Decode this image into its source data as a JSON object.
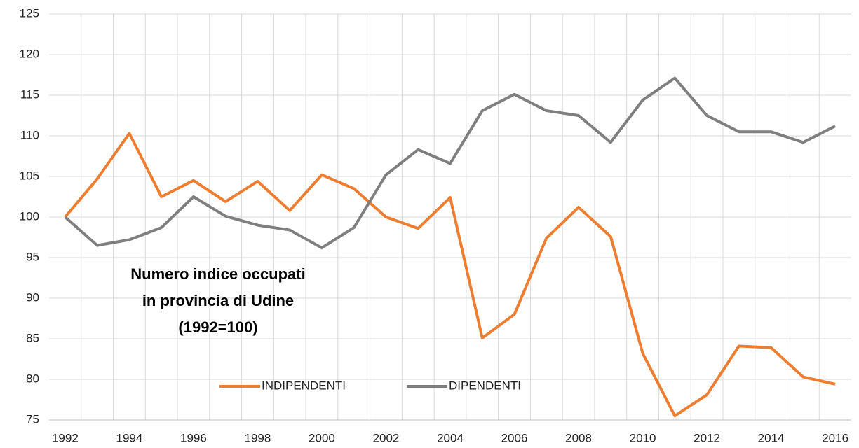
{
  "chart_data": {
    "type": "line",
    "annotation": [
      "Numero indice occupati",
      "in provincia di Udine",
      "(1992=100)"
    ],
    "categories": [
      "1992",
      null,
      "1994",
      null,
      "1996",
      null,
      "1998",
      null,
      "2000",
      null,
      "2002",
      null,
      "2004",
      null,
      "2006",
      null,
      "2008",
      null,
      "2010",
      null,
      "2012",
      null,
      "2014",
      null,
      "2016"
    ],
    "series": [
      {
        "name": "INDIPENDENTI",
        "color": "#ED7D31",
        "values": [
          100,
          104.7,
          110.3,
          102.5,
          104.5,
          101.9,
          104.4,
          100.8,
          105.2,
          103.5,
          100,
          98.6,
          102.4,
          85.1,
          88,
          97.4,
          101.2,
          97.6,
          83.2,
          75.5,
          78.1,
          84.1,
          83.9,
          80.3,
          79.4
        ]
      },
      {
        "name": "DIPENDENTI",
        "color": "#7F7F7F",
        "values": [
          100,
          96.5,
          97.2,
          98.7,
          102.5,
          100.1,
          99,
          98.4,
          96.2,
          98.7,
          105.2,
          108.3,
          106.6,
          113.1,
          115.1,
          113.1,
          112.5,
          109.2,
          114.4,
          117.1,
          112.5,
          110.5,
          110.5,
          109.2,
          111.2
        ]
      }
    ],
    "ylim": [
      75,
      125
    ],
    "yticks": [
      75,
      80,
      85,
      90,
      95,
      100,
      105,
      110,
      115,
      120,
      125
    ],
    "grid": true,
    "legend": "bottom"
  }
}
